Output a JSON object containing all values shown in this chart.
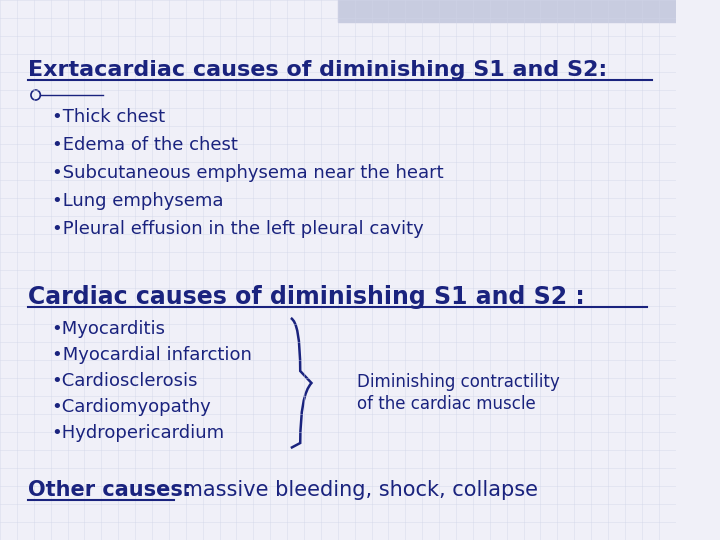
{
  "background_color": "#f0f0f8",
  "top_bar_color": "#c8cce0",
  "text_color": "#1a237e",
  "title1": "Exrtacardiac causes of diminishing S1 and S2:",
  "title2": "Cardiac causes of diminishing S1 and S2 :",
  "title3_bold": "Other causes:",
  "title3_rest": " massive bleeding, shock, collapse",
  "bullet1_items": [
    "•Thick chest",
    "•Edema of the chest",
    "•Subcutaneous emphysema near the heart",
    "•Lung emphysema",
    "•Pleural effusion in the left pleural cavity"
  ],
  "bullet2_items": [
    "•Myocarditis",
    "•Myocardial infarction",
    "•Cardiosclerosis",
    "•Cardiomyopathy",
    "•Hydropericardium"
  ],
  "brace_label_line1": "Diminishing contractility",
  "brace_label_line2": "of the cardiac muscle",
  "grid_color": "#d0d4e8"
}
